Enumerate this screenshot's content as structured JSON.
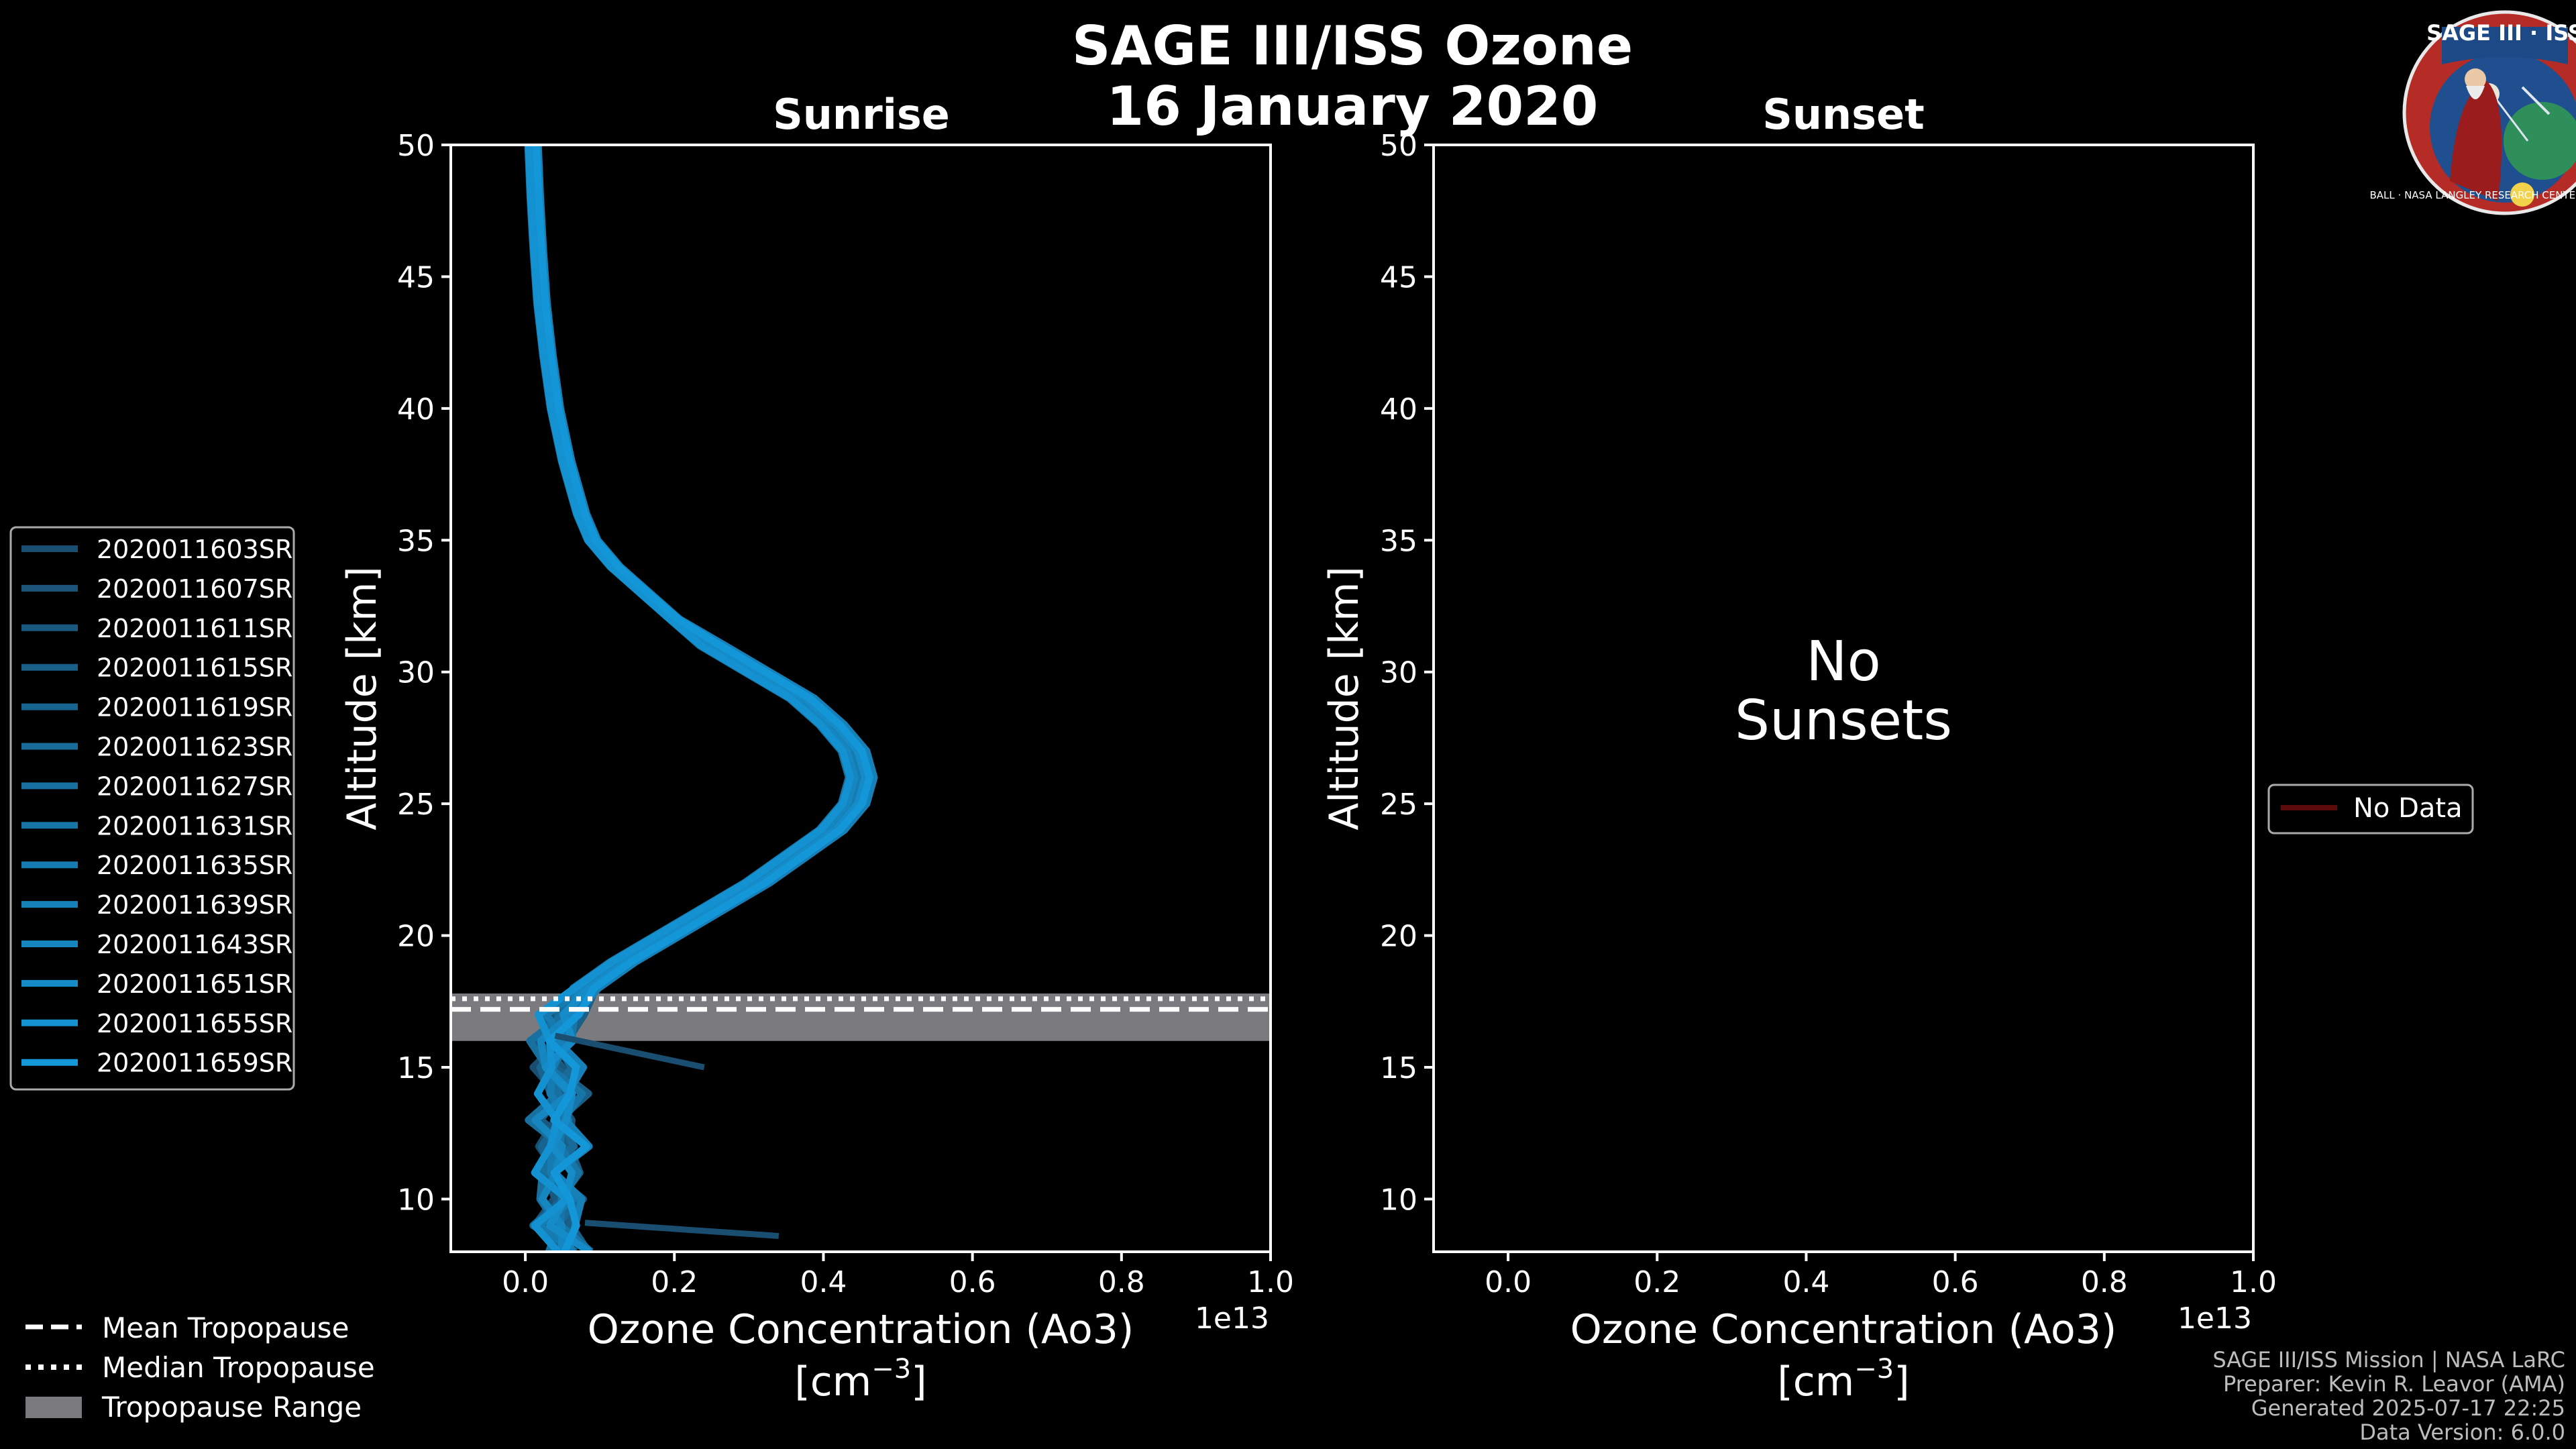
{
  "title": {
    "line1": "SAGE III/ISS Ozone",
    "line2": "16 January 2020"
  },
  "logo": {
    "label": "SAGE III · ISS",
    "ring_text": "BALL · NASA LANGLEY RESEARCH CENTER · TAS · ESA",
    "colors": {
      "ring": "#b52b26",
      "field": "#1f4f8f",
      "text": "#ffffff"
    }
  },
  "colors": {
    "background": "#000000",
    "axes": "#ffffff",
    "series_dark": "#1a4e70",
    "series_light": "#1497d8",
    "tropopause_band": "#7b7b7f",
    "no_data": "#5a0a0a"
  },
  "chart_data": [
    {
      "type": "line",
      "title": "Sunrise",
      "xlabel": "Ozone Concentration (Ao3)",
      "xunits": "[cm",
      "xunits_exp": "−3",
      "xunits_close": "]",
      "x_offset_label": "1e13",
      "ylabel": "Altitude [km]",
      "xlim": [
        -0.1,
        1.0
      ],
      "ylim": [
        8,
        50
      ],
      "xticks": [
        0.0,
        0.2,
        0.4,
        0.6,
        0.8,
        1.0
      ],
      "xtick_labels": [
        "0.0",
        "0.2",
        "0.4",
        "0.6",
        "0.8",
        "1.0"
      ],
      "yticks": [
        10,
        15,
        20,
        25,
        30,
        35,
        40,
        45,
        50
      ],
      "ytick_labels": [
        "10",
        "15",
        "20",
        "25",
        "30",
        "35",
        "40",
        "45",
        "50"
      ],
      "tropopause": {
        "mean": 17.2,
        "median": 17.6,
        "range": [
          16.0,
          17.8
        ]
      },
      "base_profile": [
        [
          8.0,
          0.06
        ],
        [
          9.0,
          0.04
        ],
        [
          10.0,
          0.05
        ],
        [
          11.0,
          0.04
        ],
        [
          12.0,
          0.05
        ],
        [
          13.0,
          0.04
        ],
        [
          14.0,
          0.05
        ],
        [
          15.0,
          0.04
        ],
        [
          16.0,
          0.04
        ],
        [
          17.0,
          0.05
        ],
        [
          18.0,
          0.08
        ],
        [
          19.0,
          0.13
        ],
        [
          20.0,
          0.19
        ],
        [
          21.0,
          0.25
        ],
        [
          22.0,
          0.31
        ],
        [
          23.0,
          0.36
        ],
        [
          24.0,
          0.41
        ],
        [
          25.0,
          0.44
        ],
        [
          26.0,
          0.45
        ],
        [
          27.0,
          0.44
        ],
        [
          28.0,
          0.41
        ],
        [
          29.0,
          0.37
        ],
        [
          30.0,
          0.31
        ],
        [
          31.0,
          0.25
        ],
        [
          32.0,
          0.2
        ],
        [
          33.0,
          0.16
        ],
        [
          34.0,
          0.12
        ],
        [
          35.0,
          0.09
        ],
        [
          36.0,
          0.075
        ],
        [
          38.0,
          0.055
        ],
        [
          40.0,
          0.04
        ],
        [
          42.0,
          0.03
        ],
        [
          44.0,
          0.022
        ],
        [
          46.0,
          0.017
        ],
        [
          48.0,
          0.013
        ],
        [
          50.0,
          0.01
        ]
      ],
      "outliers": [
        {
          "from": [
            16.2,
            0.04
          ],
          "to": [
            15.0,
            0.24
          ]
        },
        {
          "from": [
            9.1,
            0.08
          ],
          "to": [
            8.6,
            0.34
          ]
        }
      ],
      "series": [
        {
          "name": "2020011603SR",
          "offset": -0.012
        },
        {
          "name": "2020011607SR",
          "offset": 0.008
        },
        {
          "name": "2020011611SR",
          "offset": -0.004
        },
        {
          "name": "2020011615SR",
          "offset": 0.015
        },
        {
          "name": "2020011619SR",
          "offset": -0.01
        },
        {
          "name": "2020011623SR",
          "offset": 0.004
        },
        {
          "name": "2020011627SR",
          "offset": -0.016
        },
        {
          "name": "2020011631SR",
          "offset": 0.011
        },
        {
          "name": "2020011635SR",
          "offset": -0.002
        },
        {
          "name": "2020011639SR",
          "offset": 0.018
        },
        {
          "name": "2020011643SR",
          "offset": -0.008
        },
        {
          "name": "2020011651SR",
          "offset": 0.006
        },
        {
          "name": "2020011655SR",
          "offset": -0.014
        },
        {
          "name": "2020011659SR",
          "offset": 0.012
        }
      ],
      "tropopause_legend": [
        "Mean Tropopause",
        "Median Tropopause",
        "Tropopause Range"
      ]
    },
    {
      "type": "line",
      "title": "Sunset",
      "xlabel": "Ozone Concentration (Ao3)",
      "xunits": "[cm",
      "xunits_exp": "−3",
      "xunits_close": "]",
      "x_offset_label": "1e13",
      "ylabel": "Altitude [km]",
      "xlim": [
        -0.1,
        1.0
      ],
      "ylim": [
        8,
        50
      ],
      "xticks": [
        0.0,
        0.2,
        0.4,
        0.6,
        0.8,
        1.0
      ],
      "xtick_labels": [
        "0.0",
        "0.2",
        "0.4",
        "0.6",
        "0.8",
        "1.0"
      ],
      "yticks": [
        10,
        15,
        20,
        25,
        30,
        35,
        40,
        45,
        50
      ],
      "ytick_labels": [
        "10",
        "15",
        "20",
        "25",
        "30",
        "35",
        "40",
        "45",
        "50"
      ],
      "message_line1": "No",
      "message_line2": "Sunsets",
      "legend": [
        "No Data"
      ],
      "series": []
    }
  ],
  "footer": {
    "line1": "SAGE III/ISS Mission | NASA LaRC",
    "line2": "Preparer: Kevin R. Leavor (AMA)",
    "line3": "Generated 2025-07-17 22:25",
    "line4": "Data Version: 6.0.0"
  }
}
